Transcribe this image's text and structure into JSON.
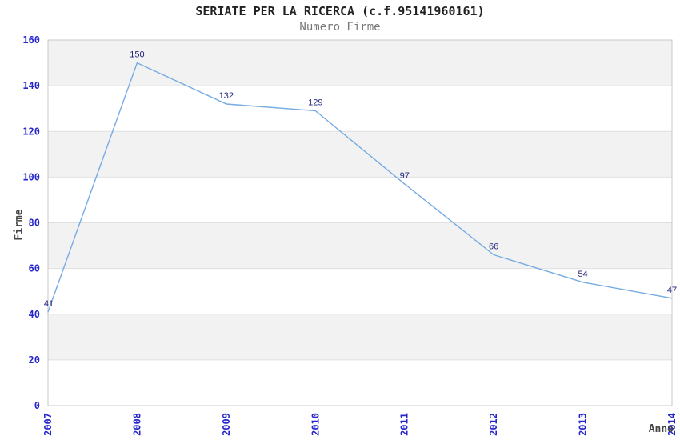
{
  "header": {
    "title": "SERIATE PER LA RICERCA (c.f.95141960161)",
    "subtitle": "Numero Firme"
  },
  "chart_data": {
    "type": "line",
    "title": "SERIATE PER LA RICERCA (c.f.95141960161)",
    "subtitle": "Numero Firme",
    "xlabel": "Anno",
    "ylabel": "Firme",
    "x": [
      "2007",
      "2008",
      "2009",
      "2010",
      "2011",
      "2012",
      "2013",
      "2014"
    ],
    "values": [
      41,
      150,
      132,
      129,
      97,
      66,
      54,
      47
    ],
    "point_labels": [
      "41",
      "150",
      "132",
      "129",
      "97",
      "66",
      "54",
      "47"
    ],
    "ylim": [
      0,
      160
    ],
    "ytick_step": 20,
    "yticks": [
      "0",
      "20",
      "40",
      "60",
      "80",
      "100",
      "120",
      "140",
      "160"
    ],
    "grid": "horizontal",
    "banding": "alternating",
    "legend": "none",
    "colors": {
      "line": "#74abe2",
      "tick_label": "#2626cc",
      "point_label": "#252580",
      "band": "#f2f2f2",
      "grid_line": "#e0e0e0",
      "plot_border": "#c8c8c8",
      "title": "#222222",
      "subtitle": "#777777",
      "axis_title": "#444444",
      "background": "#ffffff"
    }
  }
}
